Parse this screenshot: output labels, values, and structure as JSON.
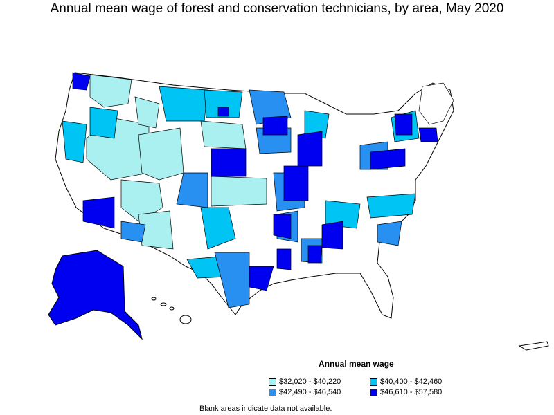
{
  "title": "Annual mean wage of forest and conservation technicians, by area, May 2020",
  "legend": {
    "title": "Annual mean wage",
    "items": [
      {
        "label": "$32,020 - $40,220",
        "color": "#aaf0f0"
      },
      {
        "label": "$40,400 - $42,460",
        "color": "#00c4f4"
      },
      {
        "label": "$42,490 - $46,540",
        "color": "#2890f0"
      },
      {
        "label": "$46,610 - $57,580",
        "color": "#0000f0"
      }
    ]
  },
  "footnote": "Blank areas indicate data not available."
}
